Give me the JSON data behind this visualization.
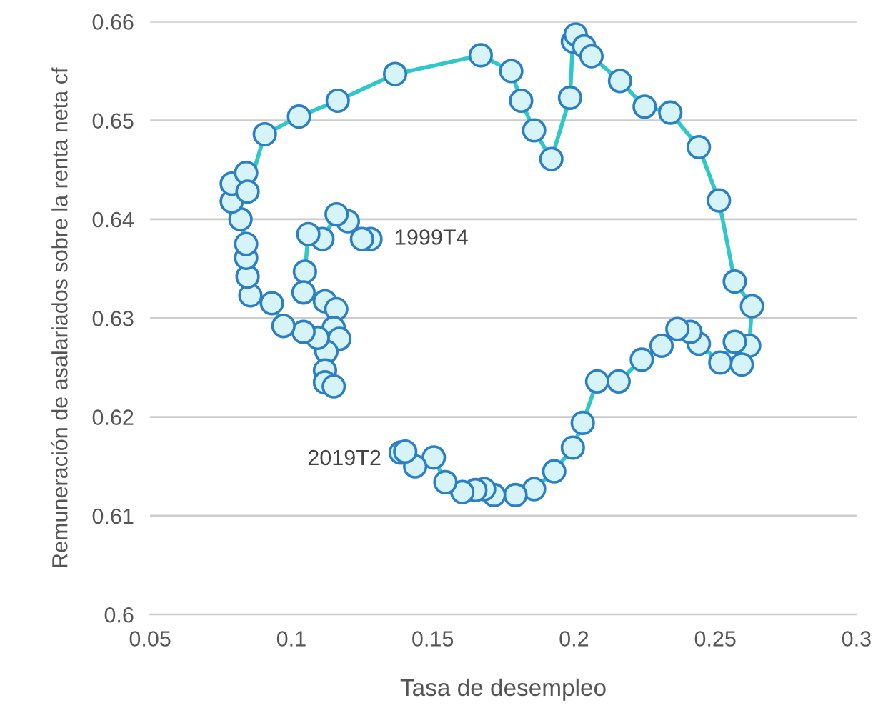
{
  "chart_data": {
    "type": "line",
    "xlabel": "Tasa de desempleo",
    "ylabel": "Remuneración de asalariados sobre la renta neta cf",
    "xlim": [
      0.05,
      0.3
    ],
    "xticks": [
      0.05,
      0.1,
      0.15,
      0.2,
      0.25,
      0.3
    ],
    "ylim": [
      0.6,
      0.66
    ],
    "yticks": [
      0.6,
      0.61,
      0.62,
      0.63,
      0.64,
      0.65,
      0.66
    ],
    "grid": "y",
    "marker": "circle",
    "line_style": "solid",
    "series": [
      {
        "color": "#2ec8c8",
        "x": [
          0.128,
          0.125,
          0.12,
          0.116,
          0.111,
          0.106,
          0.1048,
          0.1043,
          0.1119,
          0.1159,
          0.115,
          0.117,
          0.1124,
          0.1119,
          0.1119,
          0.115,
          0.1093,
          0.1043,
          0.0972,
          0.0931,
          0.0855,
          0.0845,
          0.084,
          0.084,
          0.082,
          0.0789,
          0.0789,
          0.084,
          0.0845,
          0.0906,
          0.1027,
          0.1164,
          0.1367,
          0.167,
          0.1778,
          0.1813,
          0.1859,
          0.192,
          0.1986,
          0.1996,
          0.2006,
          0.2036,
          0.2062,
          0.2163,
          0.225,
          0.2341,
          0.2442,
          0.2513,
          0.2569,
          0.263,
          0.262,
          0.2594,
          0.2569,
          0.2518,
          0.2442,
          0.2412,
          0.2366,
          0.231,
          0.224,
          0.2158,
          0.2082,
          0.2031,
          0.1996,
          0.193,
          0.1859,
          0.1793,
          0.1717,
          0.1682,
          0.1651,
          0.1605,
          0.1545,
          0.1504,
          0.1438,
          0.1387,
          0.1403
        ],
        "values": [
          0.638,
          0.638,
          0.6398,
          0.6405,
          0.638,
          0.6385,
          0.6347,
          0.6326,
          0.6317,
          0.6309,
          0.629,
          0.6279,
          0.6266,
          0.6247,
          0.6235,
          0.6231,
          0.628,
          0.6286,
          0.6292,
          0.6315,
          0.6323,
          0.6342,
          0.6361,
          0.6375,
          0.64,
          0.6418,
          0.6436,
          0.6447,
          0.6428,
          0.6486,
          0.6504,
          0.652,
          0.6547,
          0.6566,
          0.655,
          0.652,
          0.649,
          0.6461,
          0.6523,
          0.658,
          0.6587,
          0.6575,
          0.6565,
          0.654,
          0.6514,
          0.6508,
          0.6473,
          0.6419,
          0.6337,
          0.6312,
          0.6272,
          0.6253,
          0.6276,
          0.6255,
          0.6274,
          0.6286,
          0.6289,
          0.6272,
          0.6258,
          0.6236,
          0.6236,
          0.6194,
          0.6169,
          0.6145,
          0.6127,
          0.6121,
          0.6121,
          0.6127,
          0.6126,
          0.6124,
          0.6134,
          0.6159,
          0.615,
          0.6164,
          0.6165
        ]
      }
    ],
    "annotations": [
      {
        "text": "1999T4",
        "x": 0.128,
        "y": 0.638
      },
      {
        "text": "2019T2",
        "x": 0.1403,
        "y": 0.6165
      }
    ]
  }
}
